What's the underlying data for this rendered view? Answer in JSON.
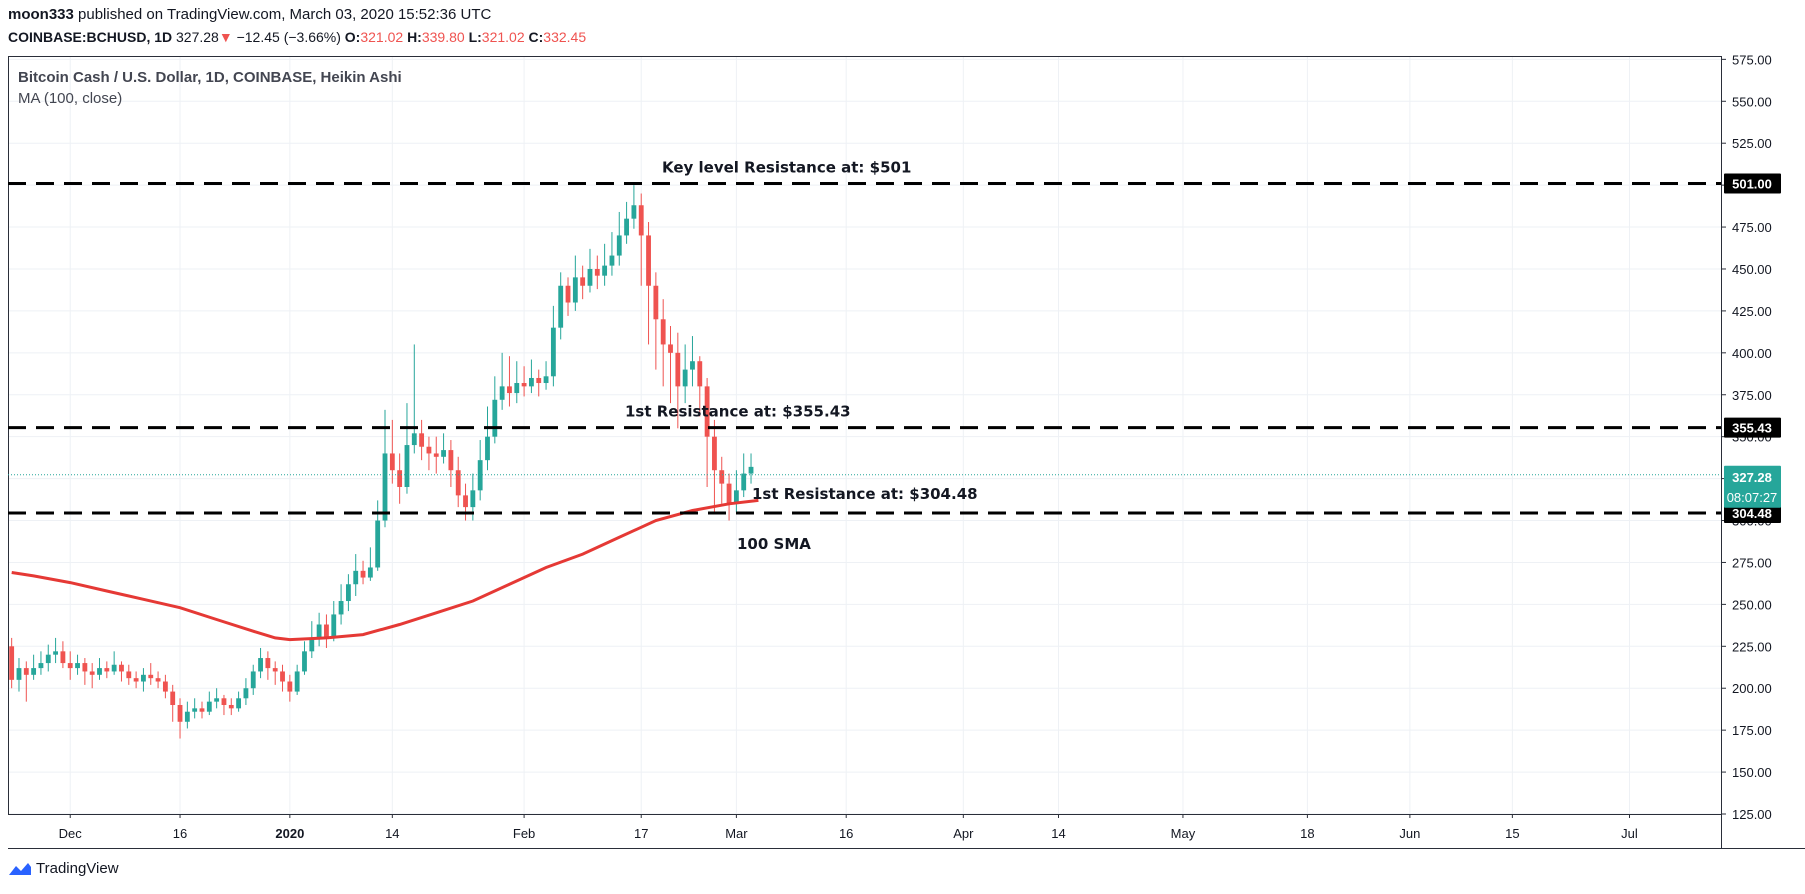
{
  "header": {
    "author": "moon333",
    "published": " published on TradingView.com, March 03, 2020 15:52:36 UTC",
    "symbol": "COINBASE:BCHUSD, 1D",
    "last": "327.28",
    "change": "−12.45 (−3.66%)",
    "o_label": "O:",
    "o": "321.02",
    "h_label": "H:",
    "h": "339.80",
    "l_label": "L:",
    "l": "321.02",
    "c_label": "C:",
    "c": "332.45"
  },
  "legend": {
    "title": "Bitcoin Cash / U.S. Dollar, 1D, COINBASE, Heikin Ashi",
    "indicator": "MA (100, close)"
  },
  "footer": {
    "brand": "TradingView"
  },
  "colors": {
    "up": "#26a69a",
    "down": "#ef5350",
    "ma": "#e53935",
    "lines": "#000000",
    "grid": "#eef1f5"
  },
  "chart_data": {
    "type": "candlestick",
    "y_axis": {
      "ticks": [
        "125.00",
        "150.00",
        "175.00",
        "200.00",
        "225.00",
        "250.00",
        "275.00",
        "300.00",
        "325.00",
        "350.00",
        "375.00",
        "400.00",
        "425.00",
        "450.00",
        "475.00",
        "500.00",
        "525.00",
        "550.00",
        "575.00"
      ],
      "range": [
        125,
        577
      ]
    },
    "x_axis": {
      "ticks": [
        {
          "label": "Dec",
          "day": 0
        },
        {
          "label": "16",
          "day": 15
        },
        {
          "label": "2020",
          "day": 30,
          "bold": true
        },
        {
          "label": "14",
          "day": 44
        },
        {
          "label": "Feb",
          "day": 62
        },
        {
          "label": "17",
          "day": 78
        },
        {
          "label": "Mar",
          "day": 91
        },
        {
          "label": "16",
          "day": 106
        },
        {
          "label": "Apr",
          "day": 122
        },
        {
          "label": "14",
          "day": 135
        },
        {
          "label": "May",
          "day": 152
        },
        {
          "label": "18",
          "day": 169
        },
        {
          "label": "Jun",
          "day": 183
        },
        {
          "label": "15",
          "day": 197
        },
        {
          "label": "Jul",
          "day": 213
        }
      ],
      "range": [
        -8.5,
        225.5
      ]
    },
    "horizontal_levels": [
      {
        "value": 501,
        "label": "Key level Resistance at: $501",
        "tag": "501.00"
      },
      {
        "value": 355.43,
        "label": "1st Resistance at: $355.43",
        "tag": "355.43"
      },
      {
        "value": 304.48,
        "label": "1st Resistance at: $304.48",
        "tag": "304.48"
      }
    ],
    "last_price": {
      "value": 327.28,
      "tag": "327.28",
      "countdown": "08:07:27"
    },
    "ma_label": "100 SMA",
    "ma": [
      [
        -8,
        269
      ],
      [
        -5,
        267
      ],
      [
        0,
        263
      ],
      [
        5,
        258
      ],
      [
        10,
        253
      ],
      [
        15,
        248
      ],
      [
        20,
        241
      ],
      [
        25,
        234
      ],
      [
        28,
        230
      ],
      [
        30,
        229
      ],
      [
        35,
        230
      ],
      [
        40,
        232
      ],
      [
        45,
        238
      ],
      [
        50,
        245
      ],
      [
        55,
        252
      ],
      [
        60,
        262
      ],
      [
        65,
        272
      ],
      [
        70,
        280
      ],
      [
        75,
        290
      ],
      [
        80,
        300
      ],
      [
        85,
        306
      ],
      [
        90,
        310
      ],
      [
        94,
        312
      ]
    ],
    "candles": [
      [
        -8,
        225,
        205,
        230,
        200
      ],
      [
        -7,
        205,
        212,
        218,
        198
      ],
      [
        -6,
        212,
        208,
        216,
        192
      ],
      [
        -5,
        208,
        212,
        220,
        205
      ],
      [
        -4,
        212,
        215,
        222,
        208
      ],
      [
        -3,
        215,
        220,
        226,
        210
      ],
      [
        -2,
        220,
        222,
        230,
        215
      ],
      [
        -1,
        222,
        215,
        228,
        212
      ],
      [
        0,
        215,
        212,
        222,
        205
      ],
      [
        1,
        212,
        215,
        220,
        208
      ],
      [
        2,
        215,
        210,
        218,
        202
      ],
      [
        3,
        210,
        208,
        215,
        200
      ],
      [
        4,
        208,
        212,
        218,
        205
      ],
      [
        5,
        212,
        210,
        216,
        206
      ],
      [
        6,
        210,
        214,
        222,
        208
      ],
      [
        7,
        214,
        210,
        216,
        204
      ],
      [
        8,
        210,
        206,
        214,
        202
      ],
      [
        9,
        206,
        204,
        210,
        200
      ],
      [
        10,
        204,
        208,
        212,
        198
      ],
      [
        11,
        208,
        206,
        215,
        202
      ],
      [
        12,
        206,
        204,
        210,
        200
      ],
      [
        13,
        204,
        198,
        208,
        194
      ],
      [
        14,
        198,
        190,
        202,
        180
      ],
      [
        15,
        190,
        180,
        194,
        170
      ],
      [
        16,
        180,
        186,
        192,
        176
      ],
      [
        17,
        186,
        188,
        194,
        182
      ],
      [
        18,
        188,
        186,
        192,
        182
      ],
      [
        19,
        186,
        192,
        198,
        184
      ],
      [
        20,
        192,
        194,
        200,
        188
      ],
      [
        21,
        194,
        190,
        196,
        184
      ],
      [
        22,
        190,
        188,
        194,
        184
      ],
      [
        23,
        188,
        194,
        198,
        186
      ],
      [
        24,
        194,
        200,
        206,
        190
      ],
      [
        25,
        200,
        210,
        214,
        196
      ],
      [
        26,
        210,
        218,
        224,
        206
      ],
      [
        27,
        218,
        212,
        222,
        205
      ],
      [
        28,
        212,
        210,
        216,
        202
      ],
      [
        29,
        210,
        204,
        214,
        198
      ],
      [
        30,
        204,
        198,
        208,
        192
      ],
      [
        31,
        198,
        210,
        214,
        196
      ],
      [
        32,
        210,
        222,
        228,
        208
      ],
      [
        33,
        222,
        230,
        240,
        218
      ],
      [
        34,
        230,
        238,
        245,
        225
      ],
      [
        35,
        238,
        230,
        244,
        224
      ],
      [
        36,
        230,
        244,
        252,
        228
      ],
      [
        37,
        244,
        252,
        262,
        238
      ],
      [
        38,
        252,
        262,
        268,
        246
      ],
      [
        39,
        262,
        270,
        280,
        255
      ],
      [
        40,
        270,
        266,
        276,
        262
      ],
      [
        41,
        266,
        272,
        284,
        264
      ],
      [
        42,
        272,
        300,
        312,
        270
      ],
      [
        43,
        300,
        340,
        366,
        296
      ],
      [
        44,
        340,
        330,
        360,
        322
      ],
      [
        45,
        330,
        320,
        340,
        310
      ],
      [
        46,
        320,
        345,
        370,
        316
      ],
      [
        47,
        345,
        352,
        405,
        340
      ],
      [
        48,
        352,
        344,
        360,
        336
      ],
      [
        49,
        344,
        340,
        350,
        330
      ],
      [
        50,
        340,
        338,
        350,
        328
      ],
      [
        51,
        338,
        342,
        352,
        334
      ],
      [
        52,
        342,
        330,
        348,
        320
      ],
      [
        53,
        330,
        315,
        338,
        308
      ],
      [
        54,
        315,
        308,
        322,
        300
      ],
      [
        55,
        308,
        318,
        328,
        300
      ],
      [
        56,
        318,
        336,
        348,
        312
      ],
      [
        57,
        336,
        350,
        368,
        330
      ],
      [
        58,
        350,
        372,
        386,
        346
      ],
      [
        59,
        372,
        380,
        400,
        366
      ],
      [
        60,
        380,
        376,
        398,
        368
      ],
      [
        61,
        376,
        382,
        395,
        370
      ],
      [
        62,
        382,
        380,
        392,
        374
      ],
      [
        63,
        380,
        385,
        396,
        376
      ],
      [
        64,
        385,
        382,
        390,
        374
      ],
      [
        65,
        382,
        386,
        395,
        378
      ],
      [
        66,
        386,
        415,
        428,
        380
      ],
      [
        67,
        415,
        440,
        448,
        408
      ],
      [
        68,
        440,
        430,
        445,
        422
      ],
      [
        69,
        430,
        445,
        458,
        425
      ],
      [
        70,
        445,
        440,
        452,
        432
      ],
      [
        71,
        440,
        450,
        462,
        436
      ],
      [
        72,
        450,
        446,
        458,
        438
      ],
      [
        73,
        446,
        452,
        465,
        440
      ],
      [
        74,
        452,
        458,
        472,
        446
      ],
      [
        75,
        458,
        470,
        484,
        452
      ],
      [
        76,
        470,
        480,
        490,
        465
      ],
      [
        77,
        480,
        488,
        500,
        474
      ],
      [
        78,
        488,
        470,
        495,
        440
      ],
      [
        79,
        470,
        440,
        478,
        405
      ],
      [
        80,
        440,
        420,
        448,
        390
      ],
      [
        81,
        420,
        405,
        432,
        380
      ],
      [
        82,
        405,
        400,
        416,
        370
      ],
      [
        83,
        400,
        380,
        412,
        355
      ],
      [
        84,
        380,
        390,
        405,
        370
      ],
      [
        85,
        390,
        395,
        410,
        380
      ],
      [
        86,
        395,
        380,
        398,
        362
      ],
      [
        87,
        380,
        350,
        385,
        320
      ],
      [
        88,
        350,
        330,
        360,
        305
      ],
      [
        89,
        330,
        322,
        338,
        310
      ],
      [
        90,
        322,
        310,
        328,
        300
      ],
      [
        91,
        310,
        318,
        330,
        305
      ],
      [
        92,
        318,
        328,
        340,
        314
      ],
      [
        93,
        328,
        332,
        340,
        322
      ]
    ]
  }
}
